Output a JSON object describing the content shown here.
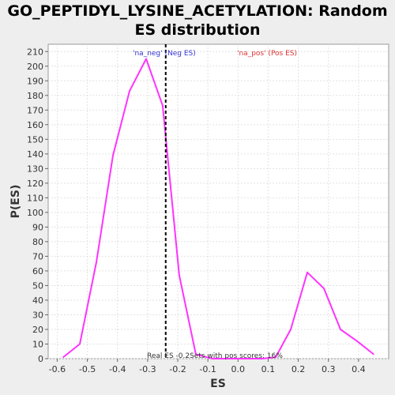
{
  "title_line1": "GO_PEPTIDYL_LYSINE_ACETYLATION: Random",
  "title_line2": "ES distribution",
  "chart_data": {
    "type": "line",
    "title": "GO_PEPTIDYL_LYSINE_ACETYLATION: Random ES distribution",
    "xlabel": "ES",
    "ylabel": "P(ES)",
    "xlim": [
      -0.63,
      0.5
    ],
    "ylim": [
      0,
      215
    ],
    "x_ticks": [
      -0.6,
      -0.5,
      -0.4,
      -0.3,
      -0.2,
      -0.1,
      0.0,
      0.1,
      0.2,
      0.3,
      0.4
    ],
    "x_tick_labels": [
      "-0.6",
      "-0.5",
      "-0.4",
      "-0.3",
      "-0.2",
      "-0.1",
      "0.0",
      "0.1",
      "0.2",
      "0.3",
      "0.4"
    ],
    "y_ticks": [
      0,
      10,
      20,
      30,
      40,
      50,
      60,
      70,
      80,
      90,
      100,
      110,
      120,
      130,
      140,
      150,
      160,
      170,
      180,
      190,
      200,
      210
    ],
    "grid": true,
    "series": [
      {
        "color": "#ff33ff",
        "x": [
          -0.58,
          -0.525,
          -0.47,
          -0.415,
          -0.36,
          -0.305,
          -0.25,
          -0.195,
          -0.14,
          -0.085,
          -0.03,
          0.025,
          0.08,
          0.125,
          0.175,
          0.23,
          0.285,
          0.34,
          0.395,
          0.45
        ],
        "y": [
          1,
          10,
          66,
          139,
          183,
          205,
          173,
          57,
          3,
          0,
          0,
          0,
          0,
          1,
          20,
          59,
          48,
          20,
          12,
          3
        ]
      }
    ],
    "real_es": -0.24,
    "real_es_color": "#000000",
    "annotations": {
      "neg_label": "'na_neg' (Neg ES)",
      "neg_color": "#3333cc",
      "pos_label": "'na_pos' (Pos ES)",
      "pos_color": "#dd3333",
      "bottom_text": "Real ES -0.2Sets with pos scores: 16%"
    }
  }
}
